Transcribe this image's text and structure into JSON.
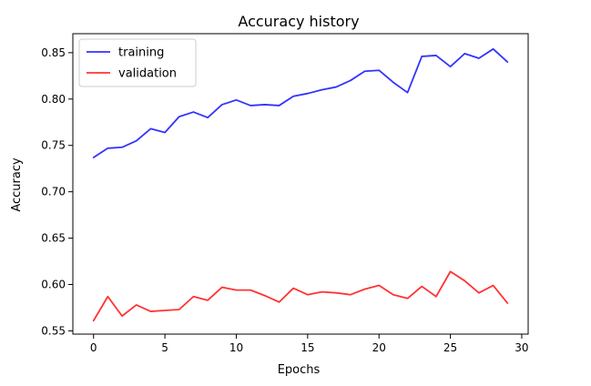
{
  "chart_data": {
    "type": "line",
    "title": "Accuracy history",
    "xlabel": "Epochs",
    "ylabel": "Accuracy",
    "xlim": [
      -1.45,
      30.45
    ],
    "ylim": [
      0.5465,
      0.8705
    ],
    "xticks": [
      0,
      5,
      10,
      15,
      20,
      25,
      30
    ],
    "yticks": [
      0.55,
      0.6,
      0.65,
      0.7,
      0.75,
      0.8,
      0.85
    ],
    "xtick_labels": [
      "0",
      "5",
      "10",
      "15",
      "20",
      "25",
      "30"
    ],
    "ytick_labels": [
      "0.55",
      "0.60",
      "0.65",
      "0.70",
      "0.75",
      "0.80",
      "0.85"
    ],
    "grid": false,
    "legend_position": "top-left",
    "x": [
      0,
      1,
      2,
      3,
      4,
      5,
      6,
      7,
      8,
      9,
      10,
      11,
      12,
      13,
      14,
      15,
      16,
      17,
      18,
      19,
      20,
      21,
      22,
      23,
      24,
      25,
      26,
      27,
      28,
      29
    ],
    "series": [
      {
        "name": "training",
        "color": "#3333ff",
        "values": [
          0.737,
          0.747,
          0.748,
          0.755,
          0.768,
          0.764,
          0.781,
          0.786,
          0.78,
          0.794,
          0.799,
          0.793,
          0.794,
          0.793,
          0.803,
          0.806,
          0.81,
          0.813,
          0.82,
          0.83,
          0.831,
          0.818,
          0.807,
          0.846,
          0.847,
          0.835,
          0.849,
          0.844,
          0.854,
          0.84
        ]
      },
      {
        "name": "validation",
        "color": "#ff3333",
        "values": [
          0.561,
          0.587,
          0.566,
          0.578,
          0.571,
          0.572,
          0.573,
          0.587,
          0.583,
          0.597,
          0.594,
          0.594,
          0.588,
          0.581,
          0.596,
          0.589,
          0.592,
          0.591,
          0.589,
          0.595,
          0.599,
          0.589,
          0.585,
          0.598,
          0.587,
          0.614,
          0.604,
          0.591,
          0.599,
          0.58
        ]
      }
    ]
  }
}
